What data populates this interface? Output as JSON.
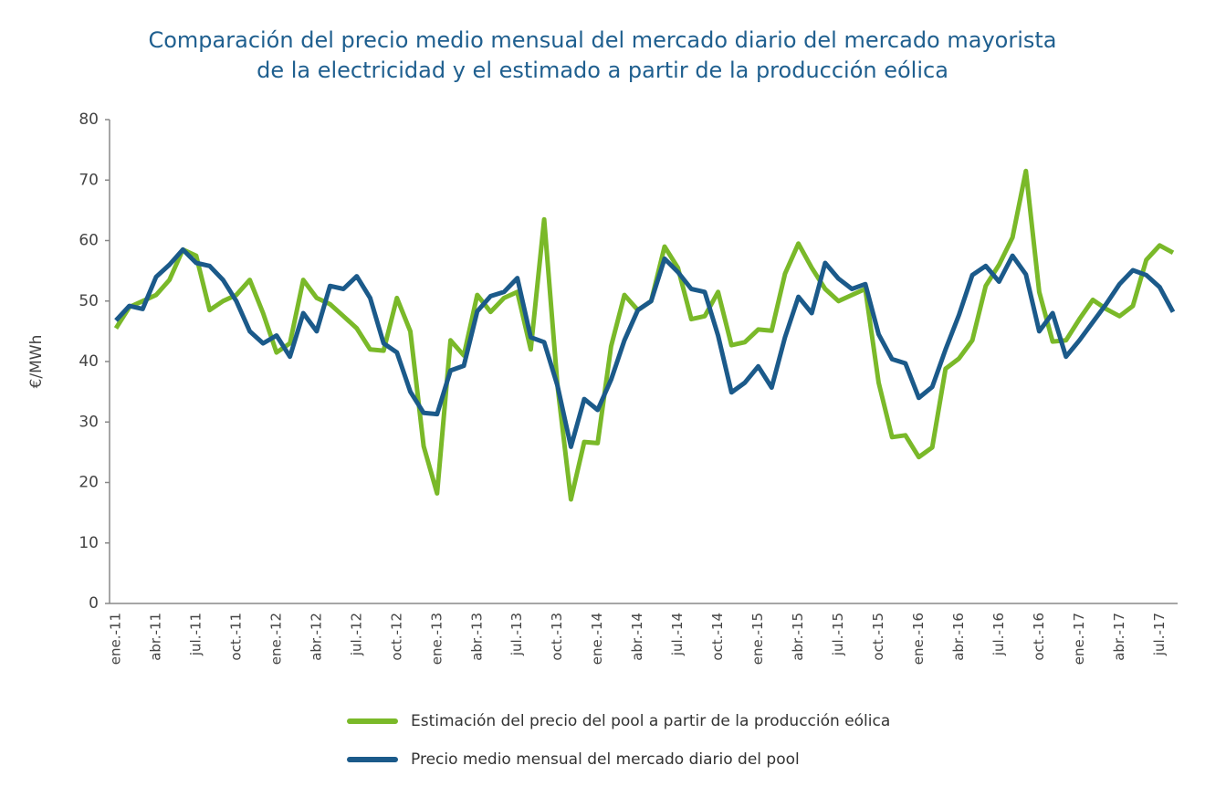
{
  "chart_data": {
    "type": "line",
    "title": [
      "Comparación del precio medio mensual del mercado diario del mercado mayorista",
      "de la electricidad y el estimado a partir de la producción eólica"
    ],
    "ylabel": "€/MWh",
    "categories": [
      "ene.-11",
      null,
      null,
      "abr.-11",
      null,
      null,
      "jul.-11",
      null,
      null,
      "oct.-11",
      null,
      null,
      "ene.-12",
      null,
      null,
      "abr.-12",
      null,
      null,
      "jul.-12",
      null,
      null,
      "oct.-12",
      null,
      null,
      "ene.-13",
      null,
      null,
      "abr.-13",
      null,
      null,
      "jul.-13",
      null,
      null,
      "oct.-13",
      null,
      null,
      "ene.-14",
      null,
      null,
      "abr.-14",
      null,
      null,
      "jul.-14",
      null,
      null,
      "oct.-14",
      null,
      null,
      "ene.-15",
      null,
      null,
      "abr.-15",
      null,
      null,
      "jul.-15",
      null,
      null,
      "oct.-15",
      null,
      null,
      "ene.-16",
      null,
      null,
      "abr.-16",
      null,
      null,
      "jul.-16",
      null,
      null,
      "oct.-16",
      null,
      null,
      "ene.-17",
      null,
      null,
      "abr.-17",
      null,
      null,
      "jul.-17",
      null
    ],
    "series": [
      {
        "name": "Estimación del precio del pool a partir de la producción eólica",
        "color": "#7ab929",
        "values": [
          45.5,
          49,
          50,
          51,
          53.5,
          58.5,
          57.5,
          48.5,
          50,
          51,
          53.5,
          48,
          41.5,
          43,
          53.5,
          50.5,
          49.5,
          47.5,
          45.5,
          42,
          41.8,
          50.5,
          45,
          26,
          18.2,
          43.5,
          41,
          51,
          48.2,
          50.5,
          51.5,
          42,
          63.5,
          36,
          17.2,
          26.7,
          26.5,
          42.5,
          51,
          48.5,
          50,
          59,
          55.5,
          47,
          47.5,
          51.5,
          42.7,
          43.2,
          45.3,
          45.1,
          54.5,
          59.5,
          55.5,
          52,
          50,
          51,
          52,
          36.5,
          27.5,
          27.8,
          24.2,
          25.8,
          38.8,
          40.5,
          43.5,
          52.5,
          56,
          60.5,
          71.5,
          51.5,
          43.3,
          43.5,
          47,
          50.2,
          48.7,
          47.5,
          49.2,
          56.8,
          59.2,
          58
        ]
      },
      {
        "name": "Precio medio mensual del mercado diario del pool",
        "color": "#1b5a8a",
        "values": [
          46.8,
          49.2,
          48.7,
          54,
          56,
          58.5,
          56.3,
          55.8,
          53.5,
          50,
          45,
          43,
          44.3,
          40.8,
          48,
          45,
          52.5,
          52,
          54.1,
          50.5,
          43,
          41.5,
          35,
          31.5,
          31.3,
          38.5,
          39.3,
          48.3,
          50.8,
          51.5,
          53.8,
          44,
          43.2,
          36,
          25.9,
          33.8,
          32,
          37,
          43.5,
          48.5,
          50,
          57,
          54.8,
          52,
          51.5,
          44.3,
          34.9,
          36.5,
          39.2,
          35.7,
          44,
          50.7,
          48,
          56.3,
          53.7,
          52,
          52.8,
          44.5,
          40.4,
          39.7,
          34,
          35.8,
          42,
          47.7,
          54.3,
          55.8,
          53.2,
          57.5,
          54.4,
          45,
          48,
          40.8,
          43.5,
          46.5,
          49.5,
          52.8,
          55.1,
          54.3,
          52.3,
          48.2
        ]
      }
    ],
    "ylim": [
      0,
      80
    ],
    "yticks": [
      0,
      10,
      20,
      30,
      40,
      50,
      60,
      70,
      80
    ],
    "grid": false,
    "legend": "bottom"
  }
}
